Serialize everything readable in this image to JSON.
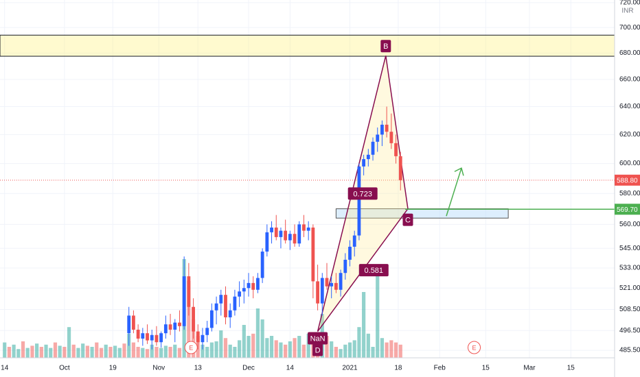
{
  "chart_data": {
    "type": "candlestick",
    "currency": "INR",
    "xlim": [
      -1,
      132.5
    ],
    "xticks": [
      {
        "value": 0,
        "label": "14"
      },
      {
        "value": 13,
        "label": "Oct"
      },
      {
        "value": 23.5,
        "label": "19"
      },
      {
        "value": 33.5,
        "label": "Nov"
      },
      {
        "value": 42,
        "label": "13"
      },
      {
        "value": 53,
        "label": "Dec"
      },
      {
        "value": 62,
        "label": "14"
      },
      {
        "value": 75,
        "label": "2021"
      },
      {
        "value": 85.5,
        "label": "18"
      },
      {
        "value": 94.5,
        "label": "Feb"
      },
      {
        "value": 104.5,
        "label": "15"
      },
      {
        "value": 114,
        "label": "Mar"
      },
      {
        "value": 123,
        "label": "15"
      }
    ],
    "ylim": [
      481.4,
      722.2
    ],
    "log_scale": true,
    "grid": true,
    "yticks": [
      {
        "value": 485.5,
        "label": "485.50"
      },
      {
        "value": 496.5,
        "label": "496.50"
      },
      {
        "value": 508.5,
        "label": "508.50"
      },
      {
        "value": 521,
        "label": "521.00"
      },
      {
        "value": 533,
        "label": "533.00"
      },
      {
        "value": 545,
        "label": "545.00"
      },
      {
        "value": 560,
        "label": "560.00"
      },
      {
        "value": 580,
        "label": "580.00"
      },
      {
        "value": 600,
        "label": "600.00"
      },
      {
        "value": 620,
        "label": "620.00"
      },
      {
        "value": 640,
        "label": "640.00"
      },
      {
        "value": 660,
        "label": "660.00"
      },
      {
        "value": 680,
        "label": "680.00"
      },
      {
        "value": 700,
        "label": "700.00"
      },
      {
        "value": 720,
        "label": "720.00"
      }
    ],
    "up_color": "#2962ff",
    "down_color": "#ef5350",
    "candle_x": [
      27,
      28,
      29,
      30,
      31,
      32,
      33,
      34,
      35,
      36,
      37,
      38,
      39,
      40,
      41,
      42,
      43,
      44,
      45,
      46,
      47,
      48,
      49,
      50,
      51,
      52,
      53,
      54,
      55,
      56,
      57,
      58,
      59,
      60,
      61,
      62,
      63,
      64,
      65,
      66,
      67,
      68,
      69,
      70,
      71,
      72,
      73,
      74,
      75,
      76,
      77,
      78,
      79,
      80,
      81,
      82,
      83,
      84,
      85,
      86
    ],
    "open": [
      495,
      505,
      497,
      492,
      495,
      491,
      494,
      490,
      495,
      500,
      497,
      501,
      499,
      528,
      510,
      496,
      490,
      494,
      498,
      508,
      512,
      517,
      504,
      508,
      516,
      519,
      521,
      524,
      520,
      527,
      543,
      555,
      558,
      552,
      556,
      550,
      554,
      548,
      560,
      556,
      558,
      525,
      512,
      527,
      522,
      524,
      520,
      530,
      538,
      546,
      553,
      598,
      603,
      606,
      615,
      620,
      627,
      622,
      614,
      605
    ],
    "high": [
      510,
      508,
      500,
      498,
      500,
      497,
      499,
      496,
      505,
      506,
      503,
      508,
      540,
      536,
      515,
      500,
      498,
      502,
      512,
      516,
      520,
      522,
      512,
      520,
      525,
      526,
      530,
      528,
      530,
      545,
      560,
      562,
      566,
      558,
      563,
      556,
      560,
      562,
      566,
      562,
      560,
      535,
      530,
      536,
      528,
      530,
      532,
      542,
      550,
      556,
      600,
      606,
      610,
      618,
      625,
      630,
      640,
      635,
      620,
      608
    ],
    "low": [
      488,
      495,
      490,
      488,
      489,
      486,
      488,
      487,
      492,
      494,
      490,
      496,
      497,
      505,
      492,
      486,
      486,
      490,
      496,
      500,
      505,
      500,
      498,
      505,
      510,
      512,
      516,
      515,
      518,
      524,
      540,
      548,
      550,
      545,
      548,
      544,
      546,
      546,
      552,
      550,
      515,
      508,
      505,
      520,
      515,
      518,
      516,
      526,
      534,
      540,
      550,
      592,
      598,
      602,
      608,
      612,
      618,
      610,
      600,
      582
    ],
    "close": [
      505,
      497,
      492,
      495,
      491,
      494,
      490,
      495,
      500,
      497,
      501,
      499,
      528,
      510,
      496,
      490,
      494,
      498,
      508,
      512,
      517,
      504,
      508,
      516,
      519,
      521,
      524,
      520,
      527,
      543,
      555,
      558,
      552,
      556,
      550,
      554,
      548,
      560,
      556,
      558,
      525,
      512,
      527,
      522,
      524,
      520,
      530,
      538,
      546,
      553,
      598,
      603,
      606,
      615,
      620,
      627,
      622,
      614,
      605,
      588.8
    ],
    "volume": {
      "x": [
        0,
        1,
        2,
        3,
        4,
        5,
        6,
        7,
        8,
        9,
        10,
        11,
        12,
        13,
        14,
        15,
        16,
        17,
        18,
        19,
        20,
        21,
        22,
        23,
        24,
        25,
        26,
        27,
        28,
        29,
        30,
        31,
        32,
        33,
        34,
        35,
        36,
        37,
        38,
        39,
        40,
        41,
        42,
        43,
        44,
        45,
        46,
        47,
        48,
        49,
        50,
        51,
        52,
        53,
        54,
        55,
        56,
        57,
        58,
        59,
        60,
        61,
        62,
        63,
        64,
        65,
        66,
        67,
        68,
        69,
        70,
        71,
        72,
        73,
        74,
        75,
        76,
        77,
        78,
        79,
        80,
        81,
        82,
        83,
        84,
        85,
        86
      ],
      "values": [
        14,
        10,
        12,
        8,
        15,
        9,
        11,
        13,
        10,
        12,
        9,
        14,
        11,
        10,
        28,
        12,
        9,
        13,
        11,
        10,
        14,
        9,
        12,
        10,
        11,
        9,
        13,
        22,
        14,
        10,
        9,
        8,
        12,
        10,
        9,
        11,
        10,
        12,
        9,
        90,
        70,
        35,
        20,
        12,
        10,
        14,
        15,
        25,
        18,
        12,
        10,
        16,
        30,
        20,
        22,
        45,
        35,
        18,
        20,
        16,
        14,
        12,
        15,
        18,
        20,
        12,
        22,
        14,
        12,
        40,
        20,
        15,
        10,
        8,
        12,
        14,
        16,
        28,
        60,
        22,
        10,
        75,
        18,
        14,
        16,
        14,
        12
      ],
      "up_early": [
        true,
        false,
        true,
        true,
        false,
        true,
        false,
        true,
        false,
        true,
        true,
        false,
        true,
        false,
        true,
        false,
        true,
        true,
        false,
        true,
        false,
        false,
        true,
        false,
        true,
        true,
        false
      ],
      "y2lim": [
        0,
        100
      ],
      "up_color": "rgba(38,166,154,0.5)",
      "down_color": "rgba(239,83,80,0.5)"
    },
    "last_price": {
      "value": 588.8,
      "label": "588.80",
      "color": "#ef5350"
    },
    "level": {
      "value": 569.7,
      "label": "569.70",
      "color": "#4caf50",
      "x_start": 87
    },
    "zone": {
      "low": 677.6,
      "high": 694,
      "color": "rgba(255,241,118,0.35)"
    },
    "box": {
      "x": [
        72,
        109.4
      ],
      "low": 564,
      "high": 570,
      "color": "rgba(187,222,251,0.5)"
    },
    "pattern": {
      "color": "#880e4f",
      "fill": "rgba(255,235,150,0.3)",
      "points": [
        {
          "label": "NaN",
          "x": 68,
          "price": 496
        },
        {
          "label": "B",
          "x": 82.8,
          "price": 678
        },
        {
          "label": "C",
          "x": 87.6,
          "price": 570
        }
      ],
      "bottom_label": "D",
      "ratios": [
        "0.723",
        "0.581"
      ]
    },
    "events": [
      {
        "label": "E",
        "x": 40.5
      },
      {
        "label": "E",
        "x": 102
      }
    ]
  }
}
